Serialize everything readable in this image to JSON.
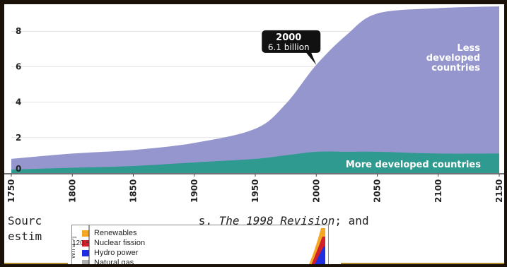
{
  "chart_data": {
    "type": "area",
    "x": [
      1750,
      1800,
      1850,
      1900,
      1950,
      1975,
      2000,
      2025,
      2050,
      2100,
      2150
    ],
    "xticks": [
      "1750",
      "1800",
      "1850",
      "1900",
      "1950",
      "2000",
      "2050",
      "2100",
      "2150"
    ],
    "yticks": [
      "0",
      "2",
      "4",
      "6",
      "8"
    ],
    "ylim": [
      0,
      10
    ],
    "series": [
      {
        "name": "More developed countries",
        "values": [
          0.2,
          0.3,
          0.4,
          0.6,
          0.8,
          1.0,
          1.2,
          1.2,
          1.2,
          1.1,
          1.1
        ],
        "color": "#2f9a8f"
      },
      {
        "name": "Less developed countries",
        "values": [
          0.6,
          0.8,
          0.9,
          1.1,
          1.7,
          2.9,
          4.9,
          6.6,
          7.8,
          8.2,
          8.3
        ],
        "color": "#9696cf"
      }
    ],
    "annotation": {
      "year": "2000",
      "value": "6.1 billion",
      "x": 2000,
      "y": 6.1
    },
    "labels": {
      "less": [
        "Less",
        "developed",
        "countries"
      ],
      "more": "More developed countries"
    }
  },
  "caption": {
    "line1_part1": "Sourc",
    "line1_part2": "s, ",
    "line1_italic": "The 1998 Revision",
    "line1_part3": "; and",
    "line2": "estim"
  },
  "inset": {
    "ylabel": "Wh a⁻¹]",
    "yticks": [
      "120",
      "100"
    ],
    "legend": [
      {
        "label": "Renewables",
        "color": "#f5a623"
      },
      {
        "label": "Nuclear fission",
        "color": "#d0202a"
      },
      {
        "label": "Hydro power",
        "color": "#1f2fe0"
      },
      {
        "label": "Natural gas",
        "color": "#b0b0b0"
      }
    ]
  }
}
